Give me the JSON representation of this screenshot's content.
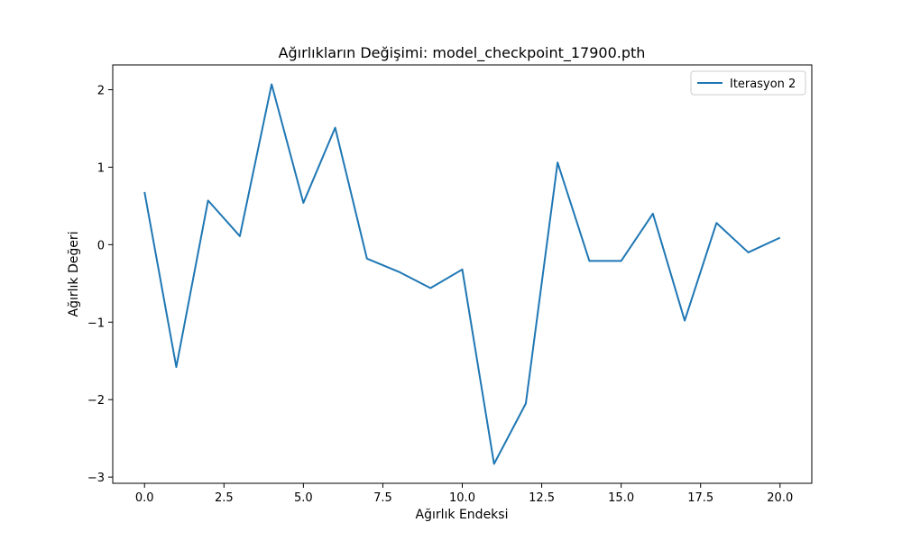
{
  "chart_data": {
    "type": "line",
    "title": "Ağırlıkların Değişimi: model_checkpoint_17900.pth",
    "xlabel": "Ağırlık Endeksi",
    "ylabel": "Ağırlık Değeri",
    "xlim": [
      -1.0,
      21.0
    ],
    "ylim": [
      -3.08,
      2.32
    ],
    "xticks": [
      0.0,
      2.5,
      5.0,
      7.5,
      10.0,
      12.5,
      15.0,
      17.5,
      20.0
    ],
    "xtick_labels": [
      "0.0",
      "2.5",
      "5.0",
      "7.5",
      "10.0",
      "12.5",
      "15.0",
      "17.5",
      "20.0"
    ],
    "yticks": [
      -3,
      -2,
      -1,
      0,
      1,
      2
    ],
    "ytick_labels": [
      "−3",
      "−2",
      "−1",
      "0",
      "1",
      "2"
    ],
    "grid": false,
    "legend_position": "top-right",
    "series": [
      {
        "name": "Iterasyon 2",
        "color": "#1f77b4",
        "x": [
          0,
          1,
          2,
          3,
          4,
          5,
          6,
          7,
          8,
          9,
          10,
          11,
          12,
          13,
          14,
          15,
          16,
          17,
          18,
          19,
          20
        ],
        "y": [
          0.68,
          -1.58,
          0.57,
          0.11,
          2.07,
          0.54,
          1.51,
          -0.18,
          -0.35,
          -0.56,
          -0.32,
          -2.83,
          -2.05,
          1.06,
          -0.21,
          -0.21,
          0.4,
          -0.98,
          0.28,
          -0.1,
          0.09
        ]
      }
    ]
  }
}
